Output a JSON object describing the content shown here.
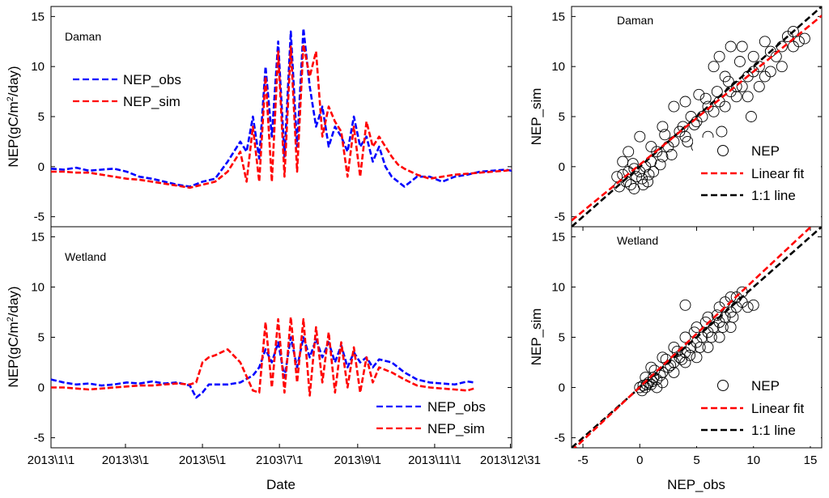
{
  "chart_data": [
    {
      "id": "ts_daman",
      "type": "line",
      "label": "Daman",
      "ylabel_prefix": "NEP(gC/m",
      "ylabel_sup": "2",
      "ylabel_suffix": "/day)",
      "xlabel": "",
      "ylim": [
        -6,
        16
      ],
      "yticks": [
        -5,
        0,
        5,
        10,
        15
      ],
      "x_tick_labels": [],
      "x_tick_days": [],
      "xlim_days": [
        0,
        365
      ],
      "legend": [
        "NEP_obs",
        "NEP_sim"
      ],
      "legend_position": "upper-left",
      "series": [
        {
          "name": "NEP_obs",
          "color": "#0000ff",
          "x": [
            0,
            10,
            20,
            30,
            40,
            50,
            60,
            70,
            80,
            90,
            100,
            110,
            120,
            130,
            140,
            150,
            155,
            160,
            165,
            170,
            175,
            180,
            185,
            190,
            195,
            200,
            205,
            210,
            215,
            220,
            225,
            230,
            235,
            240,
            245,
            250,
            255,
            260,
            265,
            270,
            275,
            280,
            290,
            300,
            310,
            320,
            330,
            340,
            350,
            360,
            365
          ],
          "y": [
            -0.2,
            -0.3,
            -0.1,
            -0.4,
            -0.3,
            -0.2,
            -0.5,
            -1.0,
            -1.2,
            -1.5,
            -1.8,
            -2.0,
            -1.5,
            -1.2,
            0.5,
            2.5,
            1.5,
            5.0,
            0.8,
            10.0,
            3.0,
            12.5,
            1.0,
            13.5,
            2.0,
            13.8,
            8.0,
            4.0,
            6.0,
            2.0,
            4.0,
            3.0,
            1.5,
            5.0,
            2.0,
            3.0,
            0.5,
            2.0,
            0.0,
            -1.0,
            -1.5,
            -2.0,
            -1.0,
            -1.0,
            -1.5,
            -1.0,
            -0.8,
            -0.5,
            -0.4,
            -0.3,
            -0.4
          ]
        },
        {
          "name": "NEP_sim",
          "color": "#ff0000",
          "x": [
            0,
            10,
            20,
            30,
            40,
            50,
            60,
            70,
            80,
            90,
            100,
            110,
            120,
            130,
            140,
            150,
            155,
            160,
            165,
            170,
            175,
            180,
            185,
            190,
            195,
            200,
            205,
            210,
            215,
            220,
            225,
            230,
            235,
            240,
            245,
            250,
            255,
            260,
            265,
            270,
            275,
            280,
            290,
            300,
            310,
            320,
            330,
            340,
            350,
            360,
            365
          ],
          "y": [
            -0.5,
            -0.5,
            -0.6,
            -0.6,
            -0.8,
            -1.0,
            -1.2,
            -1.3,
            -1.5,
            -1.7,
            -1.9,
            -2.1,
            -1.8,
            -1.5,
            -0.5,
            1.5,
            -1.5,
            4.0,
            -1.5,
            9.0,
            -1.5,
            11.5,
            -1.0,
            12.0,
            -0.5,
            12.2,
            9.0,
            11.5,
            3.0,
            6.0,
            4.5,
            3.5,
            -1.0,
            4.0,
            -1.0,
            4.5,
            2.0,
            3.0,
            2.0,
            1.0,
            0.2,
            -0.2,
            -0.8,
            -1.2,
            -1.0,
            -0.8,
            -0.7,
            -0.6,
            -0.5,
            -0.4,
            -0.3
          ]
        }
      ]
    },
    {
      "id": "ts_wetland",
      "type": "line",
      "label": "Wetland",
      "ylabel_prefix": "NEP(gC/m",
      "ylabel_sup": "2",
      "ylabel_suffix": "/day)",
      "xlabel": "Date",
      "ylim": [
        -6,
        16
      ],
      "yticks": [
        -5,
        0,
        5,
        10,
        15
      ],
      "x_tick_labels": [
        "2013\\1\\1",
        "2013\\3\\1",
        "2013\\5\\1",
        "2103\\7\\1",
        "2013\\9\\1",
        "2013\\11\\1",
        "2013\\12\\31"
      ],
      "x_tick_days": [
        0,
        59,
        120,
        181,
        243,
        304,
        364
      ],
      "xlim_days": [
        0,
        365
      ],
      "legend": [
        "NEP_obs",
        "NEP_sim"
      ],
      "legend_position": "lower-right",
      "series": [
        {
          "name": "NEP_obs",
          "color": "#0000ff",
          "x": [
            0,
            10,
            20,
            30,
            40,
            50,
            60,
            70,
            80,
            90,
            100,
            110,
            115,
            120,
            125,
            130,
            140,
            150,
            160,
            165,
            170,
            175,
            180,
            185,
            190,
            195,
            200,
            205,
            210,
            215,
            220,
            225,
            230,
            235,
            240,
            245,
            250,
            255,
            260,
            270,
            280,
            290,
            300,
            310,
            320,
            330,
            335
          ],
          "y": [
            0.8,
            0.5,
            0.3,
            0.4,
            0.2,
            0.3,
            0.5,
            0.4,
            0.6,
            0.4,
            0.5,
            0.2,
            -1.0,
            -0.5,
            0.3,
            0.3,
            0.3,
            0.5,
            1.2,
            2.0,
            3.8,
            2.5,
            4.5,
            1.0,
            5.0,
            2.0,
            5.0,
            3.0,
            4.8,
            3.0,
            4.5,
            2.5,
            4.2,
            2.0,
            3.5,
            2.5,
            3.0,
            2.0,
            2.8,
            2.5,
            1.5,
            0.8,
            0.5,
            0.4,
            0.3,
            0.6,
            0.5
          ]
        },
        {
          "name": "NEP_sim",
          "color": "#ff0000",
          "x": [
            0,
            10,
            20,
            30,
            40,
            50,
            60,
            70,
            80,
            90,
            100,
            110,
            115,
            120,
            125,
            130,
            140,
            150,
            160,
            165,
            170,
            175,
            180,
            185,
            190,
            195,
            200,
            205,
            210,
            215,
            220,
            225,
            230,
            235,
            240,
            245,
            250,
            255,
            260,
            270,
            280,
            290,
            300,
            310,
            320,
            330,
            335
          ],
          "y": [
            0.0,
            0.0,
            -0.1,
            -0.2,
            -0.1,
            0.0,
            0.1,
            0.2,
            0.2,
            0.3,
            0.4,
            0.3,
            0.5,
            2.5,
            3.0,
            3.2,
            3.8,
            2.5,
            -0.3,
            -0.5,
            6.5,
            0.0,
            6.8,
            -0.5,
            7.0,
            0.5,
            6.8,
            -0.8,
            6.0,
            0.5,
            5.5,
            -0.5,
            4.5,
            0.0,
            4.0,
            -0.5,
            3.0,
            0.5,
            2.0,
            1.5,
            0.8,
            0.2,
            0.0,
            -0.1,
            -0.2,
            -0.3,
            -0.1
          ]
        }
      ]
    },
    {
      "id": "sc_daman",
      "type": "scatter",
      "label": "Daman",
      "xlabel": "",
      "ylabel": "NEP_sim",
      "xlim": [
        -6,
        16
      ],
      "ylim": [
        -6,
        16
      ],
      "xticks": [
        -5,
        0,
        5,
        10,
        15
      ],
      "yticks": [
        -5,
        0,
        5,
        10,
        15
      ],
      "legend": [
        "NEP",
        "Linear fit",
        "1:1 line"
      ],
      "legend_position": "lower-right",
      "fit": {
        "slope": 0.93,
        "intercept": 0.2
      },
      "points": [
        [
          -2,
          -1
        ],
        [
          -1.5,
          -0.8
        ],
        [
          -1.2,
          -1.5
        ],
        [
          -1,
          -0.5
        ],
        [
          -0.8,
          -1.8
        ],
        [
          -0.5,
          -0.2
        ],
        [
          -0.3,
          -1
        ],
        [
          0,
          -0.5
        ],
        [
          0.2,
          -1.2
        ],
        [
          0.5,
          0
        ],
        [
          0.8,
          -0.8
        ],
        [
          1,
          0.5
        ],
        [
          -1.8,
          -2
        ],
        [
          -0.6,
          0.3
        ],
        [
          0.3,
          -1.8
        ],
        [
          1.2,
          -0.5
        ],
        [
          1.5,
          1.5
        ],
        [
          2,
          1
        ],
        [
          2.5,
          2
        ],
        [
          3,
          2.5
        ],
        [
          3.5,
          3.5
        ],
        [
          4,
          3
        ],
        [
          4.5,
          5
        ],
        [
          5,
          4.5
        ],
        [
          5.5,
          5
        ],
        [
          6,
          6
        ],
        [
          6.5,
          5.5
        ],
        [
          7,
          6.5
        ],
        [
          7.5,
          6
        ],
        [
          8,
          7.5
        ],
        [
          8.5,
          7
        ],
        [
          9,
          8
        ],
        [
          9.5,
          9
        ],
        [
          10,
          9.5
        ],
        [
          10.5,
          10
        ],
        [
          11,
          9
        ],
        [
          11.5,
          11.5
        ],
        [
          12,
          11
        ],
        [
          12.5,
          12
        ],
        [
          13,
          13
        ],
        [
          13.5,
          12
        ],
        [
          14,
          12.5
        ],
        [
          8,
          12
        ],
        [
          9,
          12
        ],
        [
          10,
          11
        ],
        [
          11,
          12.5
        ],
        [
          6.5,
          10
        ],
        [
          7,
          11
        ],
        [
          7.5,
          9
        ],
        [
          8.5,
          8
        ],
        [
          9.5,
          7
        ],
        [
          10.5,
          8
        ],
        [
          11.5,
          9.5
        ],
        [
          3,
          6
        ],
        [
          4,
          6.5
        ],
        [
          5,
          2
        ],
        [
          6,
          3
        ],
        [
          2,
          4
        ],
        [
          1,
          2
        ],
        [
          0,
          3
        ],
        [
          -1,
          1.5
        ],
        [
          -1.5,
          0.5
        ],
        [
          -0.5,
          -2.2
        ],
        [
          0.7,
          -1.5
        ],
        [
          1.8,
          0.2
        ],
        [
          2.8,
          1.2
        ],
        [
          3.8,
          4
        ],
        [
          4.8,
          4.2
        ],
        [
          5.8,
          6.8
        ],
        [
          6.8,
          7.5
        ],
        [
          7.8,
          8.5
        ],
        [
          8.8,
          10.5
        ],
        [
          12.5,
          10
        ],
        [
          13.5,
          13.5
        ],
        [
          14.5,
          12.8
        ],
        [
          9.8,
          5
        ],
        [
          7.2,
          3.5
        ],
        [
          4.2,
          2.5
        ],
        [
          5.2,
          7.2
        ],
        [
          2.2,
          3.2
        ]
      ]
    },
    {
      "id": "sc_wetland",
      "type": "scatter",
      "label": "Wetland",
      "xlabel": "NEP_obs",
      "ylabel": "NEP_sim",
      "xlim": [
        -6,
        16
      ],
      "ylim": [
        -6,
        16
      ],
      "xticks": [
        -5,
        0,
        5,
        10,
        15
      ],
      "yticks": [
        -5,
        0,
        5,
        10,
        15
      ],
      "legend": [
        "NEP",
        "Linear fit",
        "1:1 line"
      ],
      "legend_position": "lower-right",
      "fit": {
        "slope": 1.06,
        "intercept": 0.05
      },
      "points": [
        [
          0,
          0
        ],
        [
          0.3,
          0.2
        ],
        [
          0.5,
          0
        ],
        [
          0.8,
          0.5
        ],
        [
          1,
          0.3
        ],
        [
          1.2,
          1
        ],
        [
          1.5,
          0.8
        ],
        [
          2,
          1.5
        ],
        [
          2.5,
          2
        ],
        [
          3,
          2.5
        ],
        [
          3.5,
          3
        ],
        [
          4,
          3.5
        ],
        [
          4.5,
          4
        ],
        [
          5,
          4.5
        ],
        [
          5.5,
          5
        ],
        [
          6,
          5.5
        ],
        [
          6.5,
          6
        ],
        [
          7,
          6.5
        ],
        [
          7.5,
          7
        ],
        [
          8,
          7.5
        ],
        [
          8.5,
          8
        ],
        [
          9,
          8.5
        ],
        [
          9.5,
          8
        ],
        [
          3,
          4
        ],
        [
          4,
          5
        ],
        [
          5,
          6
        ],
        [
          6,
          7
        ],
        [
          7,
          8
        ],
        [
          8,
          9
        ],
        [
          2,
          3
        ],
        [
          1,
          2
        ],
        [
          0.5,
          1
        ],
        [
          4,
          2.5
        ],
        [
          5,
          3
        ],
        [
          6,
          4
        ],
        [
          7,
          5
        ],
        [
          8,
          6
        ],
        [
          3,
          1.5
        ],
        [
          2,
          0.5
        ],
        [
          1.5,
          0
        ],
        [
          9,
          9.5
        ],
        [
          8.5,
          9
        ],
        [
          7.5,
          8.5
        ],
        [
          4,
          8.2
        ],
        [
          10,
          8.2
        ],
        [
          0.2,
          -0.3
        ],
        [
          0.6,
          0.3
        ],
        [
          1.1,
          0.6
        ],
        [
          1.8,
          1.2
        ],
        [
          2.7,
          2.2
        ],
        [
          3.3,
          3.6
        ],
        [
          4.8,
          5.5
        ],
        [
          5.8,
          6.5
        ],
        [
          6.8,
          7.2
        ],
        [
          3.7,
          2.8
        ],
        [
          4.4,
          3.2
        ],
        [
          5.3,
          4
        ],
        [
          6.3,
          5
        ],
        [
          7.3,
          6
        ],
        [
          8.2,
          7
        ],
        [
          2.3,
          2.8
        ],
        [
          1.3,
          1.7
        ]
      ]
    }
  ]
}
